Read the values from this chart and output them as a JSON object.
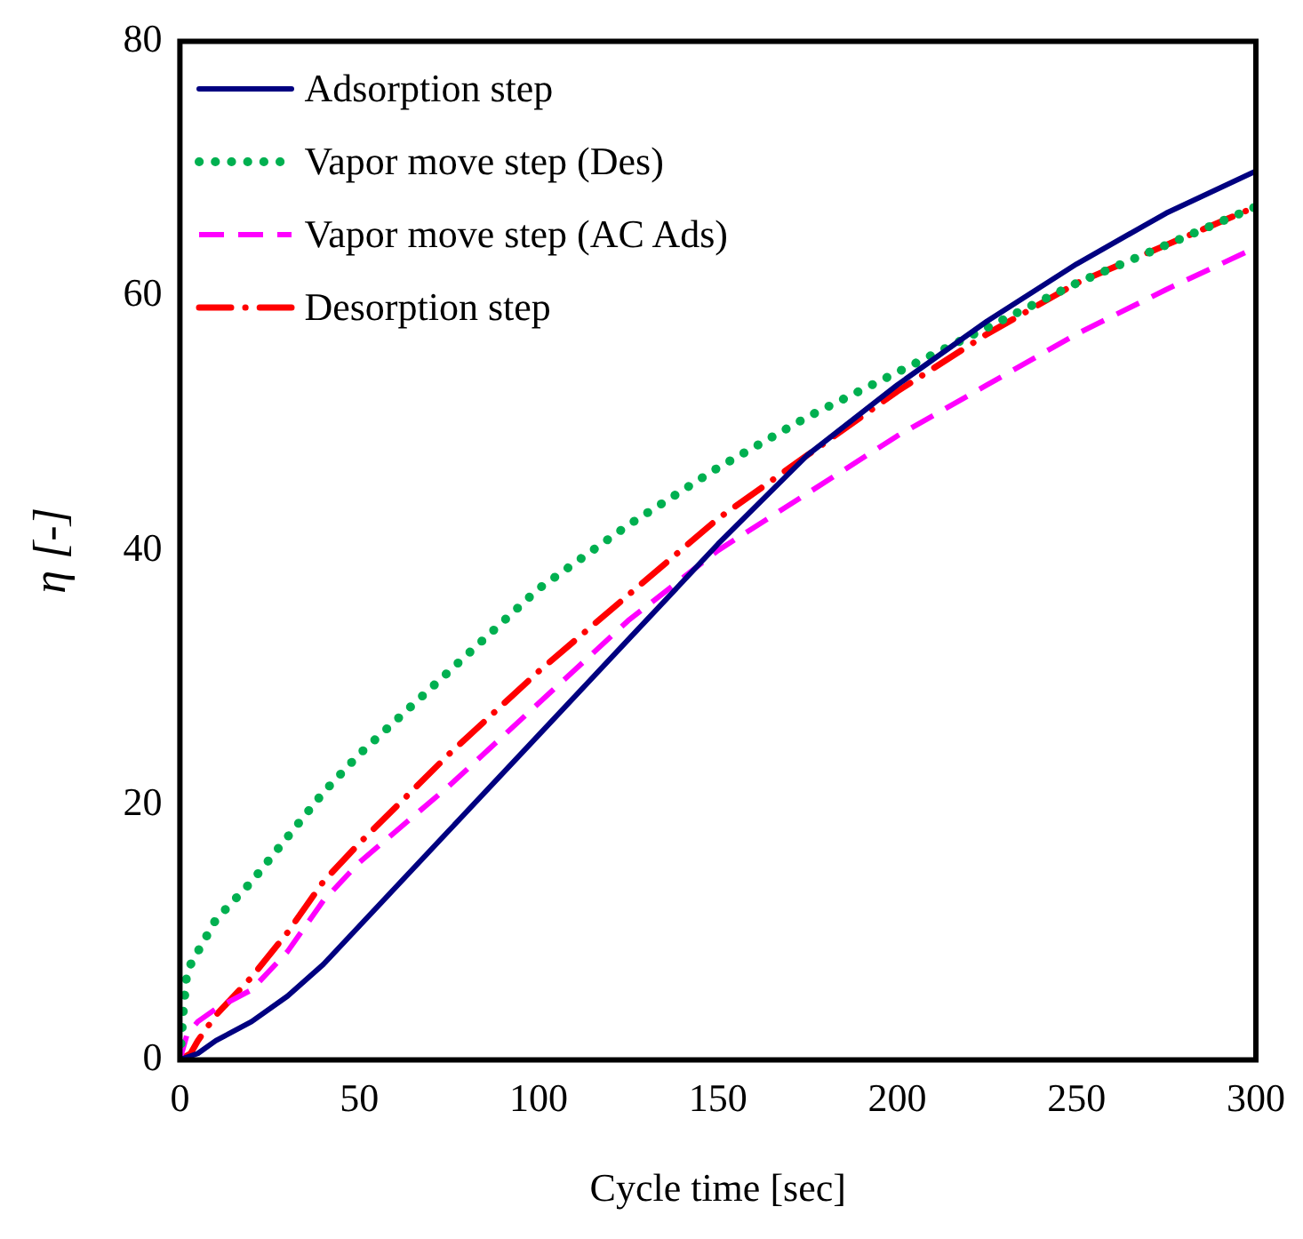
{
  "chart_data": {
    "type": "line",
    "xlabel": "Cycle time [sec]",
    "ylabel": "η [-]",
    "xlim": [
      0,
      300
    ],
    "ylim": [
      0,
      80
    ],
    "xticks": [
      0,
      50,
      100,
      150,
      200,
      250,
      300
    ],
    "yticks": [
      0,
      20,
      40,
      60,
      80
    ],
    "grid": false,
    "legend": "top left",
    "marker": "none",
    "series": [
      {
        "name": "Adsorption step",
        "color": "#000080",
        "line_style": "solid",
        "x": [
          0,
          5,
          10,
          20,
          30,
          40,
          50,
          75,
          100,
          125,
          150,
          175,
          200,
          225,
          250,
          275,
          300
        ],
        "values": [
          0,
          0.5,
          1.5,
          3,
          5,
          7.5,
          10.5,
          18,
          25.5,
          33,
          40.5,
          47.5,
          53,
          58,
          62.5,
          66.5,
          69.8
        ]
      },
      {
        "name": "Vapor move step (Des)",
        "color": "#00b050",
        "line_style": "dotted",
        "x": [
          0,
          1,
          2,
          5,
          10,
          20,
          30,
          40,
          50,
          75,
          100,
          125,
          150,
          175,
          200,
          225,
          250,
          275,
          300
        ],
        "values": [
          0,
          4,
          7,
          8.5,
          11,
          14,
          17.5,
          21,
          24,
          30.5,
          37,
          42,
          46.5,
          50.5,
          54,
          57.5,
          61,
          64,
          67
        ]
      },
      {
        "name": "Vapor move step (AC Ads)",
        "color": "#ff00ff",
        "line_style": "dashed",
        "x": [
          0,
          2,
          5,
          10,
          20,
          30,
          40,
          50,
          75,
          100,
          125,
          150,
          175,
          200,
          225,
          250,
          275,
          300
        ],
        "values": [
          0,
          2,
          3,
          4,
          5.5,
          8.5,
          12.5,
          15.5,
          21.5,
          28,
          34.5,
          40,
          44.5,
          49,
          53,
          57,
          60.5,
          63.8
        ]
      },
      {
        "name": "Desorption step",
        "color": "#ff0000",
        "line_style": "dashdot",
        "x": [
          0,
          3,
          5,
          10,
          20,
          30,
          40,
          50,
          75,
          100,
          125,
          150,
          175,
          200,
          225,
          250,
          275,
          300
        ],
        "values": [
          0,
          0.5,
          1.5,
          3.5,
          6.5,
          10,
          14,
          17,
          24,
          30.5,
          36.5,
          42.5,
          47.5,
          52.5,
          57,
          61,
          64,
          67
        ]
      }
    ]
  }
}
